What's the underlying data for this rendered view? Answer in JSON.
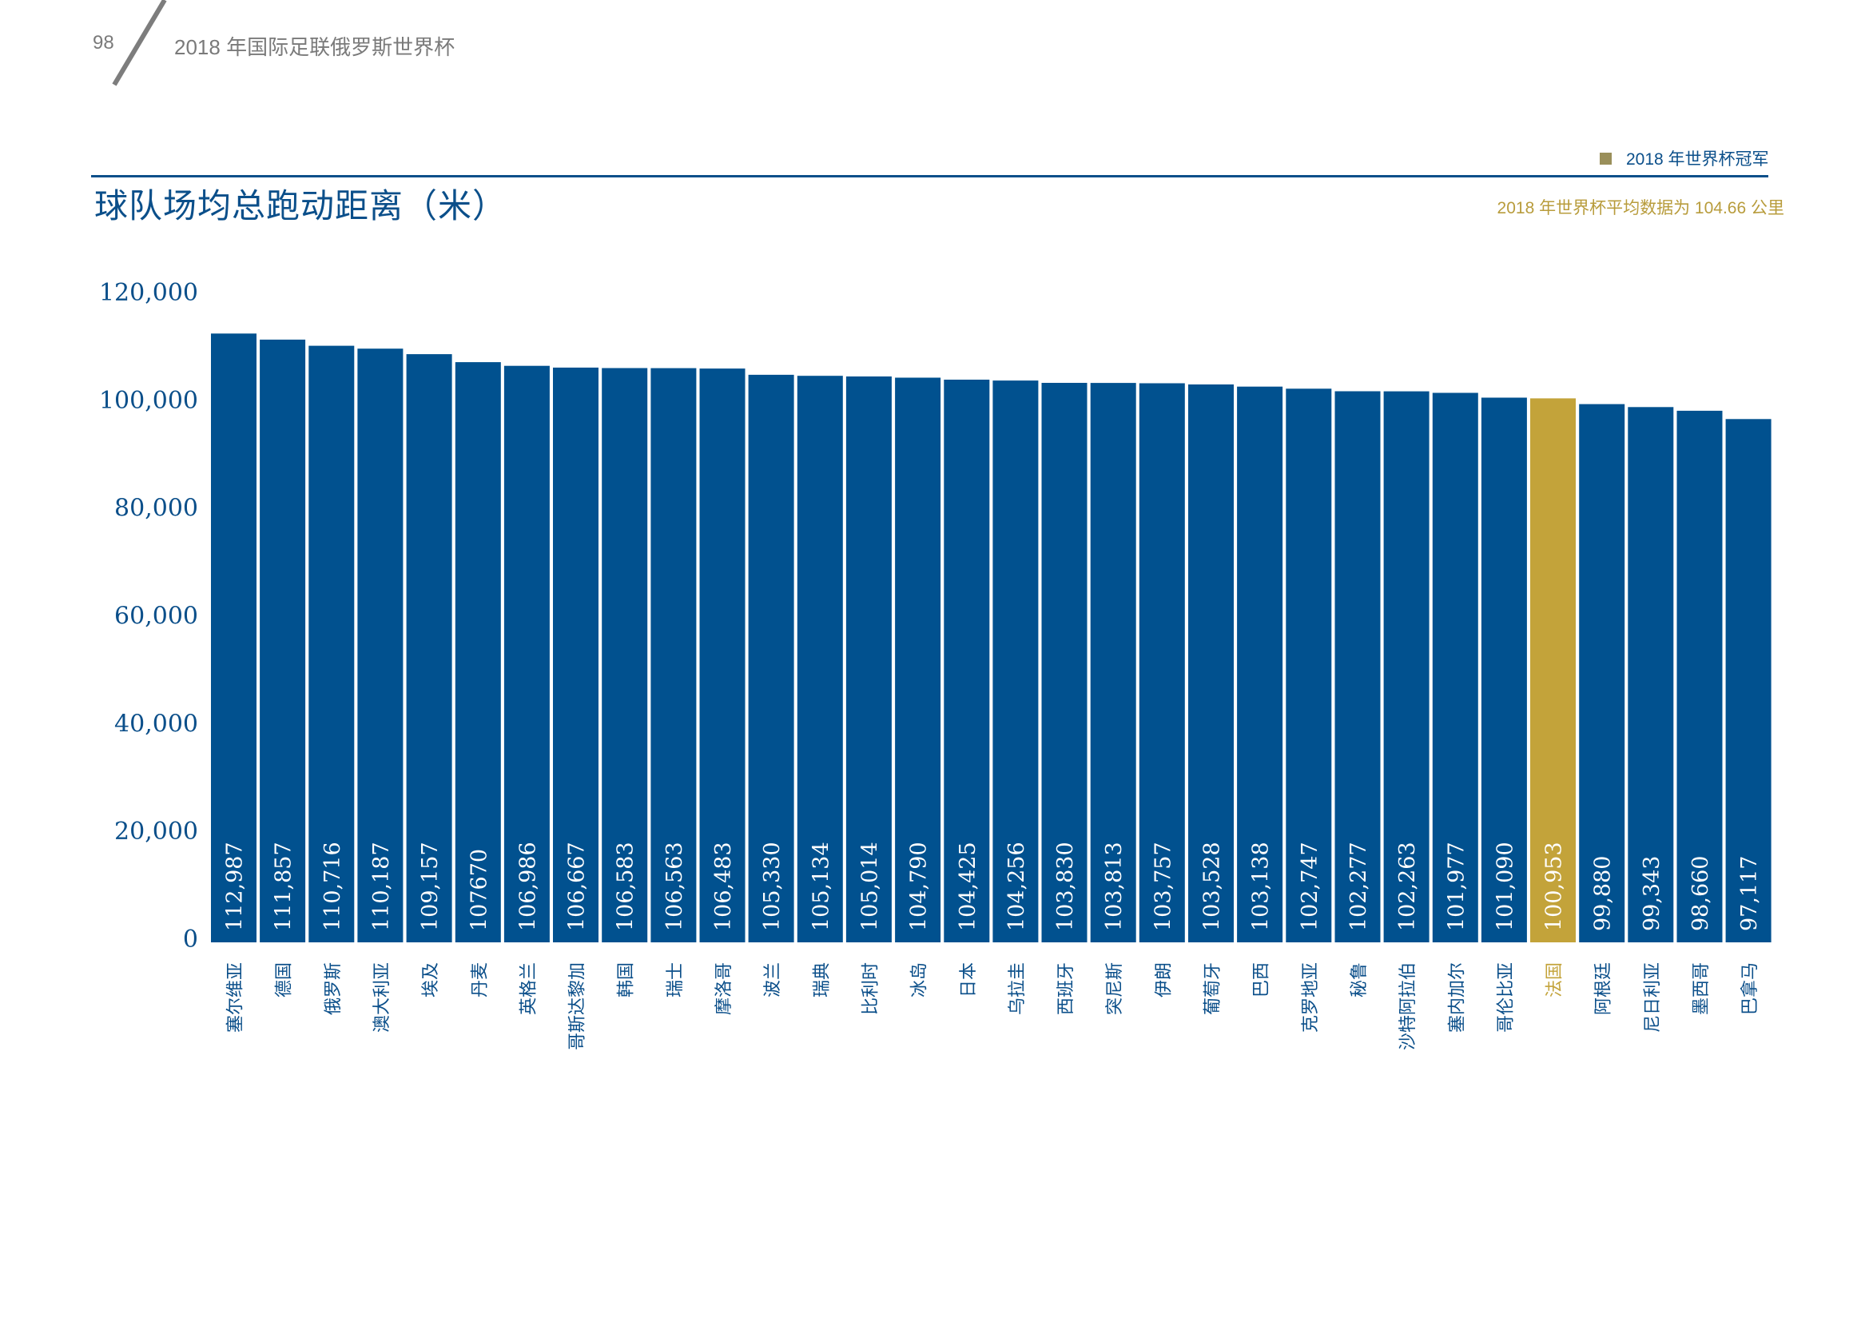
{
  "page": {
    "page_number": "98",
    "running_head": "2018 年国际足联俄罗斯世界杯"
  },
  "legend": {
    "label": "2018 年世界杯冠军",
    "swatch_color": "#9a8f5a"
  },
  "chart_title": "球队场均总跑动距离（米）",
  "average_note": "2018 年世界杯平均数据为 104.66 公里",
  "colors": {
    "bar": "#01518f",
    "highlight_bar": "#c3a33a",
    "axis_text": "#0b4f8a",
    "bar_label_text": "#ffffff"
  },
  "chart_data": {
    "type": "bar",
    "title": "球队场均总跑动距离（米）",
    "xlabel": "",
    "ylabel": "",
    "ylim": [
      0,
      120000
    ],
    "yticks": [
      0,
      20000,
      40000,
      60000,
      80000,
      100000,
      120000
    ],
    "ytick_labels": [
      "0",
      "20,000",
      "40,000",
      "60,000",
      "80,000",
      "100,000",
      "120,000"
    ],
    "grid": false,
    "legend_position": "top-right",
    "highlight_category": "法国",
    "highlight_meaning": "2018 年世界杯冠军",
    "categories": [
      "塞尔维亚",
      "德国",
      "俄罗斯",
      "澳大利亚",
      "埃及",
      "丹麦",
      "英格兰",
      "哥斯达黎加",
      "韩国",
      "瑞士",
      "摩洛哥",
      "波兰",
      "瑞典",
      "比利时",
      "冰岛",
      "日本",
      "乌拉圭",
      "西班牙",
      "突尼斯",
      "伊朗",
      "葡萄牙",
      "巴西",
      "克罗地亚",
      "秘鲁",
      "沙特阿拉伯",
      "塞内加尔",
      "哥伦比亚",
      "法国",
      "阿根廷",
      "尼日利亚",
      "墨西哥",
      "巴拿马"
    ],
    "values": [
      112987,
      111857,
      110716,
      110187,
      109157,
      107670,
      106986,
      106667,
      106583,
      106563,
      106483,
      105330,
      105134,
      105014,
      104790,
      104425,
      104256,
      103830,
      103813,
      103757,
      103528,
      103138,
      102747,
      102277,
      102263,
      101977,
      101090,
      100953,
      99880,
      99343,
      98660,
      97117
    ],
    "value_labels": [
      "112,987",
      "111,857",
      "110,716",
      "110,187",
      "109,157",
      "107670",
      "106,986",
      "106,667",
      "106,583",
      "106,563",
      "106,483",
      "105,330",
      "105,134",
      "105,014",
      "104,790",
      "104,425",
      "104,256",
      "103,830",
      "103,813",
      "103,757",
      "103,528",
      "103,138",
      "102,747",
      "102,277",
      "102,263",
      "101,977",
      "101,090",
      "100,953",
      "99,880",
      "99,343",
      "98,660",
      "97,117"
    ]
  }
}
